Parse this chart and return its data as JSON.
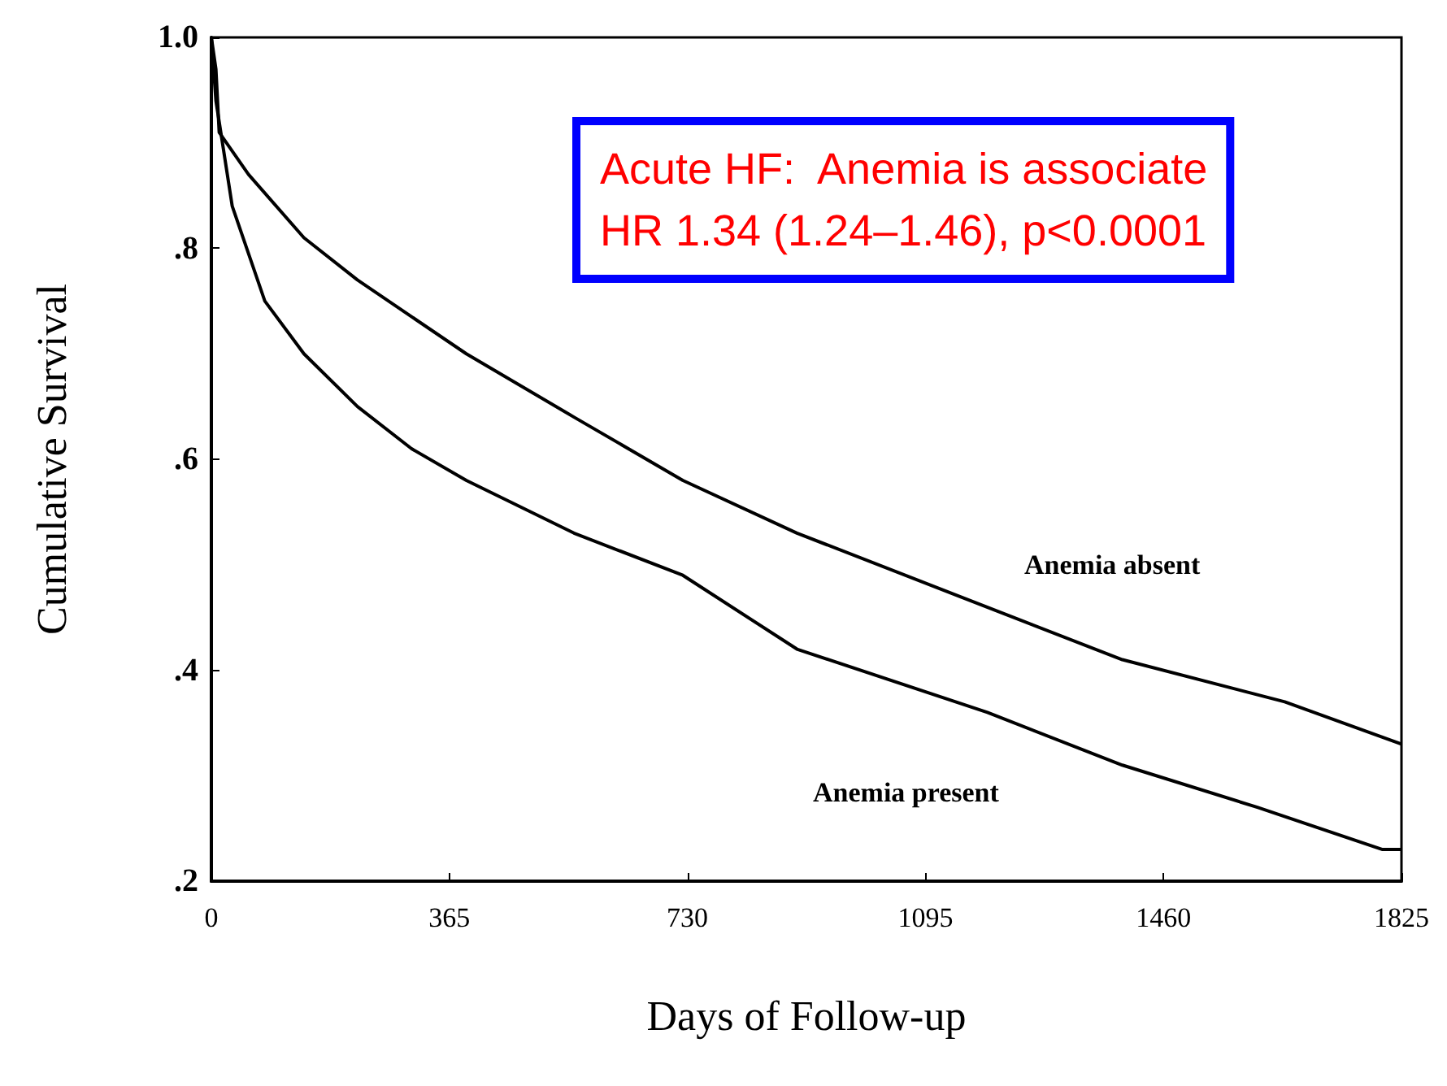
{
  "chart_data": {
    "type": "line",
    "xlabel": "Days of Follow-up",
    "ylabel": "Cumulative Survival",
    "xlim": [
      0,
      1825
    ],
    "xticks": [
      0,
      365,
      730,
      1095,
      1460,
      1825
    ],
    "ylim": [
      0.2,
      1.0
    ],
    "yticks": [
      {
        "value": 0.2,
        "label": ".2"
      },
      {
        "value": 0.4,
        "label": ".4"
      },
      {
        "value": 0.6,
        "label": ".6"
      },
      {
        "value": 0.8,
        "label": ".8"
      },
      {
        "value": 1.0,
        "label": "1.0"
      }
    ],
    "grid": false,
    "legend": false,
    "marker": "none",
    "line_style": "solid",
    "annotations": [
      "Acute HF:  Anemia is associate\nHR 1.34 (1.24–1.46), p<0.0001"
    ],
    "series": [
      {
        "name": "Anemia absent",
        "color": "#000000",
        "x": [
          0,
          7,
          12,
          57,
          142,
          224,
          391,
          556,
          723,
          898,
          1147,
          1397,
          1646,
          1825
        ],
        "values": [
          1.0,
          0.97,
          0.91,
          0.87,
          0.81,
          0.77,
          0.7,
          0.64,
          0.58,
          0.53,
          0.47,
          0.41,
          0.37,
          0.33
        ]
      },
      {
        "name": "Anemia present",
        "color": "#000000",
        "x": [
          0,
          7,
          32,
          82,
          142,
          224,
          307,
          391,
          556,
          723,
          898,
          1190,
          1397,
          1604,
          1796,
          1825
        ],
        "values": [
          1.0,
          0.94,
          0.84,
          0.75,
          0.7,
          0.65,
          0.61,
          0.58,
          0.53,
          0.49,
          0.42,
          0.36,
          0.31,
          0.27,
          0.23,
          0.23
        ]
      }
    ]
  }
}
